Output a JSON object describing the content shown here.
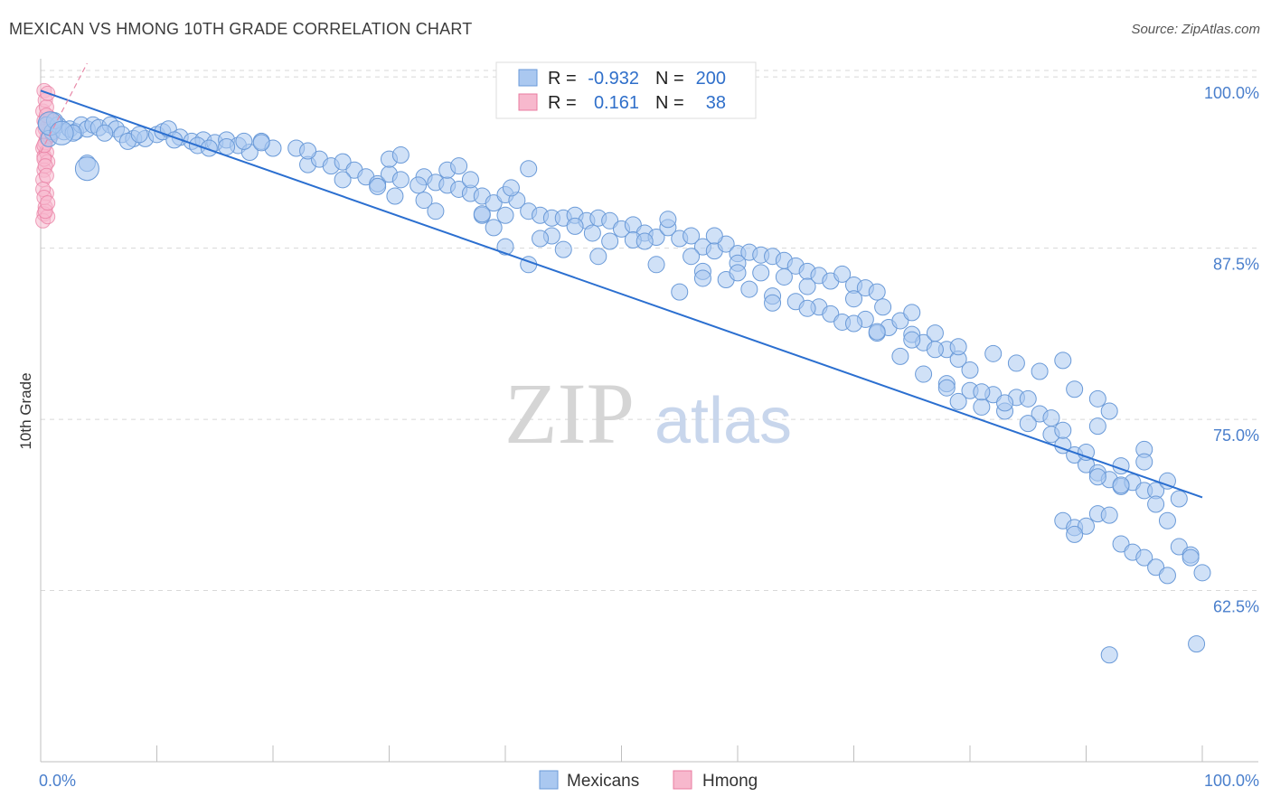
{
  "header": {
    "title": "MEXICAN VS HMONG 10TH GRADE CORRELATION CHART",
    "source": "Source: ZipAtlas.com"
  },
  "watermark": {
    "zip": "ZIP",
    "atlas": "atlas"
  },
  "legend_top": {
    "rows": [
      {
        "r_label": "R =",
        "r_value": "-0.932",
        "n_label": "N =",
        "n_value": "200"
      },
      {
        "r_label": "R =",
        "r_value": "0.161",
        "n_label": "N =",
        "n_value": "38"
      }
    ]
  },
  "legend_bottom": {
    "items": [
      "Mexicans",
      "Hmong"
    ]
  },
  "colors": {
    "mexicans_fill": "#aac8f0",
    "mexicans_stroke": "#6a9ad8",
    "mexicans_line": "#2b6fd0",
    "hmong_fill": "#f7b8cd",
    "hmong_stroke": "#e87ba0",
    "hmong_line": "#e889a8",
    "grid": "#d8d8d8",
    "tick_text": "#4a7fcc"
  },
  "chart_data": {
    "type": "scatter",
    "title": "MEXICAN VS HMONG 10TH GRADE CORRELATION CHART",
    "xlabel": "",
    "ylabel": "10th Grade",
    "xlim": [
      0,
      100
    ],
    "ylim": [
      50,
      101
    ],
    "x_tick_labels": [
      "0.0%",
      "100.0%"
    ],
    "y_ticks": [
      100,
      87.5,
      75,
      62.5
    ],
    "y_tick_labels": [
      "100.0%",
      "87.5%",
      "75.0%",
      "62.5%"
    ],
    "grid": true,
    "legend_position": "top-center",
    "series": [
      {
        "name": "Mexicans",
        "R": -0.932,
        "N": 200,
        "trend": {
          "x": [
            0,
            100
          ],
          "y": [
            99.0,
            69.3
          ]
        },
        "points": [
          [
            0.5,
            96.5
          ],
          [
            1,
            96
          ],
          [
            1.5,
            96.5
          ],
          [
            2,
            96
          ],
          [
            2.5,
            96.2
          ],
          [
            3,
            96
          ],
          [
            3.5,
            96.5
          ],
          [
            4,
            96.2
          ],
          [
            4.5,
            96.5
          ],
          [
            5,
            96.3
          ],
          [
            6,
            96.5
          ],
          [
            6.5,
            96.2
          ],
          [
            7,
            95.8
          ],
          [
            8,
            95.5
          ],
          [
            9,
            95.5
          ],
          [
            10,
            95.8
          ],
          [
            10.5,
            96
          ],
          [
            11,
            96.2
          ],
          [
            12,
            95.6
          ],
          [
            13,
            95.3
          ],
          [
            14,
            95.4
          ],
          [
            15,
            95.2
          ],
          [
            16,
            95.4
          ],
          [
            17,
            95
          ],
          [
            18,
            94.5
          ],
          [
            19,
            95.3
          ],
          [
            20,
            94.8
          ],
          [
            16,
            94.9
          ],
          [
            4,
            93.7
          ],
          [
            7.5,
            95.3
          ],
          [
            8.5,
            95.8
          ],
          [
            11.5,
            95.4
          ],
          [
            13.5,
            95
          ],
          [
            14.5,
            94.8
          ],
          [
            19,
            95.2
          ],
          [
            17.5,
            95.3
          ],
          [
            0.7,
            95.5
          ],
          [
            1.2,
            96.8
          ],
          [
            2.8,
            95.9
          ],
          [
            5.5,
            95.9
          ],
          [
            22,
            94.8
          ],
          [
            23,
            93.6
          ],
          [
            24,
            94
          ],
          [
            25,
            93.5
          ],
          [
            26,
            93.8
          ],
          [
            27,
            93.2
          ],
          [
            28,
            92.7
          ],
          [
            29,
            92.2
          ],
          [
            30,
            92.9
          ],
          [
            31,
            92.5
          ],
          [
            33,
            92.7
          ],
          [
            34,
            92.3
          ],
          [
            35,
            92.1
          ],
          [
            36,
            91.8
          ],
          [
            37,
            91.5
          ],
          [
            38,
            91.3
          ],
          [
            39,
            90.8
          ],
          [
            40,
            91.4
          ],
          [
            41,
            91
          ],
          [
            42,
            90.2
          ],
          [
            43,
            89.9
          ],
          [
            44,
            89.7
          ],
          [
            45,
            89.7
          ],
          [
            46,
            89.9
          ],
          [
            47,
            89.5
          ],
          [
            48,
            89.7
          ],
          [
            49,
            89.5
          ],
          [
            50,
            88.9
          ],
          [
            51,
            89.2
          ],
          [
            52,
            88.6
          ],
          [
            53,
            88.3
          ],
          [
            54,
            89
          ],
          [
            55,
            88.2
          ],
          [
            56,
            88.4
          ],
          [
            57,
            87.6
          ],
          [
            58,
            87.3
          ],
          [
            59,
            87.8
          ],
          [
            60,
            87.1
          ],
          [
            61,
            87.2
          ],
          [
            62,
            87
          ],
          [
            63,
            86.9
          ],
          [
            64,
            86.6
          ],
          [
            65,
            86.2
          ],
          [
            66,
            85.8
          ],
          [
            67,
            85.5
          ],
          [
            68,
            85.1
          ],
          [
            69,
            85.6
          ],
          [
            70,
            84.8
          ],
          [
            71,
            84.6
          ],
          [
            72,
            84.3
          ],
          [
            35,
            93.2
          ],
          [
            30,
            94
          ],
          [
            23,
            94.6
          ],
          [
            37,
            92.5
          ],
          [
            42,
            93.3
          ],
          [
            29,
            92
          ],
          [
            33,
            91
          ],
          [
            36,
            93.5
          ],
          [
            26,
            92.5
          ],
          [
            31,
            94.3
          ],
          [
            38,
            89.9
          ],
          [
            40,
            89.9
          ],
          [
            44,
            88.4
          ],
          [
            46,
            89.1
          ],
          [
            49,
            88
          ],
          [
            51,
            88.1
          ],
          [
            54,
            89.6
          ],
          [
            58,
            88.4
          ],
          [
            60,
            86.4
          ],
          [
            62,
            85.7
          ],
          [
            30.5,
            91.3
          ],
          [
            32.5,
            92.1
          ],
          [
            40.5,
            91.9
          ],
          [
            47.5,
            88.6
          ],
          [
            52,
            88
          ],
          [
            56,
            86.9
          ],
          [
            64,
            85.4
          ],
          [
            66,
            84.7
          ],
          [
            70,
            83.8
          ],
          [
            72.5,
            83.2
          ],
          [
            34,
            90.2
          ],
          [
            39,
            89
          ],
          [
            43,
            88.2
          ],
          [
            45,
            87.4
          ],
          [
            48,
            86.9
          ],
          [
            53,
            86.3
          ],
          [
            57,
            85.8
          ],
          [
            59,
            85.2
          ],
          [
            61,
            84.5
          ],
          [
            63,
            84
          ],
          [
            65,
            83.6
          ],
          [
            67,
            83.2
          ],
          [
            68,
            82.7
          ],
          [
            71,
            82.3
          ],
          [
            73,
            81.7
          ],
          [
            75,
            81.2
          ],
          [
            76,
            80.6
          ],
          [
            78,
            80.1
          ],
          [
            79,
            79.4
          ],
          [
            80,
            78.6
          ],
          [
            38,
            90
          ],
          [
            40,
            87.6
          ],
          [
            42,
            86.3
          ],
          [
            55,
            84.3
          ],
          [
            57,
            85.3
          ],
          [
            60,
            85.7
          ],
          [
            63,
            83.5
          ],
          [
            66,
            83.1
          ],
          [
            69,
            82.1
          ],
          [
            72,
            81.3
          ],
          [
            74,
            82.2
          ],
          [
            75,
            80.8
          ],
          [
            77,
            80.1
          ],
          [
            78,
            77.6
          ],
          [
            80,
            77.1
          ],
          [
            81,
            75.9
          ],
          [
            82,
            76.8
          ],
          [
            83,
            75.6
          ],
          [
            84,
            76.6
          ],
          [
            85,
            76.5
          ],
          [
            86,
            75.4
          ],
          [
            87,
            75.1
          ],
          [
            88,
            73.1
          ],
          [
            89,
            72.4
          ],
          [
            90,
            71.7
          ],
          [
            91,
            71.1
          ],
          [
            92,
            70.6
          ],
          [
            93,
            70.1
          ],
          [
            94,
            70.4
          ],
          [
            95,
            69.8
          ],
          [
            75,
            82.8
          ],
          [
            77,
            81.3
          ],
          [
            79,
            80.3
          ],
          [
            82,
            79.8
          ],
          [
            84,
            79.1
          ],
          [
            86,
            78.5
          ],
          [
            88,
            79.3
          ],
          [
            89,
            77.2
          ],
          [
            91,
            76.5
          ],
          [
            92,
            75.6
          ],
          [
            70,
            82
          ],
          [
            72,
            81.4
          ],
          [
            74,
            79.6
          ],
          [
            76,
            78.3
          ],
          [
            78,
            77.3
          ],
          [
            79,
            76.3
          ],
          [
            81,
            77
          ],
          [
            83,
            76.2
          ],
          [
            85,
            74.7
          ],
          [
            87,
            73.9
          ],
          [
            88,
            74.2
          ],
          [
            90,
            72.6
          ],
          [
            91,
            70.8
          ],
          [
            93,
            71.6
          ],
          [
            95,
            72.8
          ],
          [
            96,
            69.8
          ],
          [
            97,
            67.6
          ],
          [
            98,
            65.7
          ],
          [
            99,
            65.1
          ],
          [
            100,
            63.8
          ],
          [
            88,
            67.6
          ],
          [
            89,
            67.1
          ],
          [
            90,
            67.2
          ],
          [
            91,
            68.1
          ],
          [
            92,
            68
          ],
          [
            93,
            65.9
          ],
          [
            94,
            65.3
          ],
          [
            95,
            64.9
          ],
          [
            96,
            64.2
          ],
          [
            97,
            63.6
          ],
          [
            89,
            66.6
          ],
          [
            93,
            70.2
          ],
          [
            95,
            71.9
          ],
          [
            96,
            68.8
          ],
          [
            97,
            70.5
          ],
          [
            98,
            69.2
          ],
          [
            99,
            64.9
          ],
          [
            99.5,
            58.6
          ],
          [
            92,
            57.8
          ],
          [
            91,
            74.5
          ]
        ],
        "large_points": [
          [
            0.8,
            96.6
          ],
          [
            1.8,
            95.9
          ],
          [
            4,
            93.3
          ]
        ]
      },
      {
        "name": "Hmong",
        "R": 0.161,
        "N": 38,
        "trend": {
          "x": [
            0,
            4
          ],
          "y": [
            94.5,
            101
          ]
        },
        "points": [
          [
            0.2,
            97.5
          ],
          [
            0.3,
            96.8
          ],
          [
            0.4,
            96.2
          ],
          [
            0.5,
            95.5
          ],
          [
            0.2,
            94.8
          ],
          [
            0.3,
            94.2
          ],
          [
            0.6,
            95.9
          ],
          [
            0.7,
            96.5
          ],
          [
            0.8,
            97
          ],
          [
            0.4,
            95.2
          ],
          [
            0.5,
            94.5
          ],
          [
            0.6,
            93.8
          ],
          [
            0.3,
            93.2
          ],
          [
            0.2,
            92.5
          ],
          [
            0.5,
            91.5
          ],
          [
            0.4,
            90.5
          ],
          [
            0.3,
            90
          ],
          [
            0.2,
            89.5
          ],
          [
            0.6,
            89.8
          ],
          [
            0.4,
            90.2
          ],
          [
            0.3,
            99
          ],
          [
            0.4,
            98.3
          ],
          [
            0.5,
            97.8
          ],
          [
            0.2,
            96
          ],
          [
            0.7,
            95.7
          ],
          [
            0.8,
            96.9
          ],
          [
            0.9,
            96.3
          ],
          [
            1,
            95.8
          ],
          [
            0.3,
            94
          ],
          [
            0.4,
            93.5
          ],
          [
            0.5,
            92.8
          ],
          [
            0.2,
            91.8
          ],
          [
            0.3,
            91.2
          ],
          [
            0.6,
            90.8
          ],
          [
            0.4,
            96.6
          ],
          [
            0.5,
            97.2
          ],
          [
            0.6,
            98.8
          ],
          [
            0.3,
            95
          ]
        ]
      }
    ]
  }
}
